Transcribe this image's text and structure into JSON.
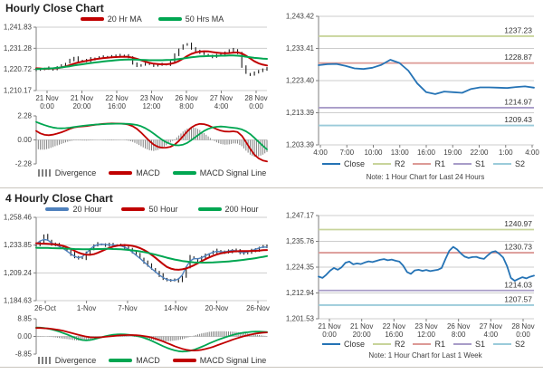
{
  "chart_data": [
    {
      "type": "candlestick",
      "title": "Hourly Close Chart",
      "ylim": [
        1210.17,
        1241.83
      ],
      "ytick_labels": [
        "1,241.83",
        "1,231.28",
        "1,220.72",
        "1,210.17"
      ],
      "ytick_values": [
        1241.83,
        1231.28,
        1220.72,
        1210.17
      ],
      "xlabels": [
        [
          "21 Nov",
          "0:00"
        ],
        [
          "21 Nov",
          "20:00"
        ],
        [
          "22 Nov",
          "16:00"
        ],
        [
          "23 Nov",
          "12:00"
        ],
        [
          "26 Nov",
          "8:00"
        ],
        [
          "27 Nov",
          "4:00"
        ],
        [
          "28 Nov",
          "0:00"
        ]
      ],
      "close": [
        1220.6,
        1220.9,
        1220.7,
        1221.3,
        1221.0,
        1221.8,
        1222.5,
        1223.8,
        1225.6,
        1226.3,
        1225.2,
        1224.6,
        1225.4,
        1226.0,
        1226.4,
        1226.8,
        1227.0,
        1227.3,
        1227.5,
        1227.2,
        1227.6,
        1227.8,
        1226.5,
        1224.0,
        1222.6,
        1222.9,
        1223.4,
        1223.1,
        1222.8,
        1223.2,
        1223.0,
        1223.4,
        1224.5,
        1228.0,
        1231.0,
        1232.8,
        1233.2,
        1231.5,
        1230.0,
        1229.0,
        1228.3,
        1227.6,
        1227.2,
        1227.8,
        1228.4,
        1229.3,
        1230.2,
        1230.6,
        1229.0,
        1222.0,
        1218.8,
        1218.4,
        1219.3,
        1219.8,
        1220.3,
        1221.6
      ],
      "series": [
        {
          "name": "20 Hr MA",
          "color": "#C00000",
          "width": 2,
          "values": [
            1221.3,
            1221.2,
            1221.0,
            1221.1,
            1221.2,
            1221.4,
            1221.7,
            1222.2,
            1222.9,
            1223.6,
            1224.2,
            1224.6,
            1225.0,
            1225.4,
            1225.8,
            1226.1,
            1226.4,
            1226.6,
            1226.8,
            1226.9,
            1227.0,
            1227.1,
            1227.0,
            1226.6,
            1226.0,
            1225.3,
            1224.6,
            1224.0,
            1223.6,
            1223.4,
            1223.3,
            1223.3,
            1223.5,
            1224.0,
            1224.9,
            1226.1,
            1227.4,
            1228.5,
            1229.2,
            1229.6,
            1229.8,
            1229.7,
            1229.4,
            1229.1,
            1228.9,
            1228.8,
            1228.9,
            1229.1,
            1229.2,
            1228.7,
            1227.6,
            1226.2,
            1224.8,
            1223.8,
            1223.1,
            1222.7
          ]
        },
        {
          "name": "50 Hrs MA",
          "color": "#00A651",
          "width": 2,
          "values": [
            1220.9,
            1221.0,
            1221.1,
            1221.2,
            1221.3,
            1221.5,
            1221.7,
            1222.0,
            1222.3,
            1222.7,
            1223.0,
            1223.3,
            1223.6,
            1223.9,
            1224.2,
            1224.4,
            1224.7,
            1224.9,
            1225.1,
            1225.3,
            1225.5,
            1225.6,
            1225.7,
            1225.7,
            1225.6,
            1225.5,
            1225.4,
            1225.3,
            1225.3,
            1225.3,
            1225.3,
            1225.4,
            1225.5,
            1225.7,
            1225.9,
            1226.2,
            1226.5,
            1226.8,
            1227.0,
            1227.2,
            1227.3,
            1227.4,
            1227.5,
            1227.5,
            1227.6,
            1227.6,
            1227.7,
            1227.7,
            1227.6,
            1227.4,
            1227.1,
            1226.8,
            1226.5,
            1226.3,
            1226.1,
            1226.0
          ]
        }
      ],
      "macd": {
        "ylim": [
          -2.28,
          2.28
        ],
        "ytick_labels": [
          "2.28",
          "0.00",
          "-2.28"
        ],
        "divergence_label": "Divergence",
        "divergence_color": "#808080",
        "macd": {
          "name": "MACD",
          "color": "#C00000",
          "values": [
            0.85,
            0.62,
            0.48,
            0.45,
            0.5,
            0.6,
            0.72,
            0.88,
            1.05,
            1.18,
            1.25,
            1.28,
            1.32,
            1.38,
            1.44,
            1.48,
            1.52,
            1.55,
            1.57,
            1.56,
            1.55,
            1.52,
            1.45,
            1.3,
            1.05,
            0.7,
            0.3,
            -0.1,
            -0.45,
            -0.65,
            -0.74,
            -0.73,
            -0.65,
            -0.45,
            -0.1,
            0.35,
            0.8,
            1.18,
            1.42,
            1.52,
            1.5,
            1.38,
            1.2,
            1.02,
            0.88,
            0.8,
            0.78,
            0.82,
            0.75,
            0.4,
            -0.2,
            -0.85,
            -1.4,
            -1.75,
            -1.95,
            -2.05
          ]
        },
        "signal": {
          "name": "MACD Signal Line",
          "color": "#00A651",
          "values": [
            1.7,
            1.55,
            1.4,
            1.28,
            1.18,
            1.12,
            1.1,
            1.12,
            1.16,
            1.22,
            1.28,
            1.33,
            1.38,
            1.42,
            1.45,
            1.48,
            1.5,
            1.52,
            1.53,
            1.54,
            1.54,
            1.53,
            1.52,
            1.48,
            1.42,
            1.3,
            1.12,
            0.88,
            0.6,
            0.3,
            0.02,
            -0.22,
            -0.4,
            -0.5,
            -0.52,
            -0.45,
            -0.28,
            -0.02,
            0.28,
            0.58,
            0.85,
            1.05,
            1.18,
            1.25,
            1.27,
            1.25,
            1.2,
            1.15,
            1.1,
            1.0,
            0.82,
            0.55,
            0.2,
            -0.18,
            -0.55,
            -0.9
          ]
        }
      }
    },
    {
      "type": "line",
      "ylim": [
        1203.39,
        1243.42
      ],
      "ytick_labels": [
        "1,243.42",
        "1,233.41",
        "1,223.40",
        "1,213.39",
        "1,203.39"
      ],
      "ytick_values": [
        1243.42,
        1233.41,
        1223.4,
        1213.39,
        1203.39
      ],
      "xlabels": [
        "4:00",
        "7:00",
        "10:00",
        "13:00",
        "16:00",
        "19:00",
        "22:00",
        "1:00",
        "4:00"
      ],
      "close": {
        "name": "Close",
        "color": "#2573B5",
        "values": [
          1228.2,
          1228.5,
          1228.6,
          1228.0,
          1227.2,
          1227.0,
          1227.4,
          1228.3,
          1229.9,
          1228.9,
          1226.5,
          1222.5,
          1219.8,
          1219.2,
          1220.0,
          1219.8,
          1219.6,
          1220.8,
          1221.3,
          1221.3,
          1221.2,
          1221.1,
          1221.4,
          1221.6,
          1221.2
        ]
      },
      "pivots": [
        {
          "name": "R2",
          "label": "1237.23",
          "value": 1237.23,
          "color": "#C8D49B"
        },
        {
          "name": "R1",
          "label": "1228.87",
          "value": 1228.87,
          "color": "#DC9A96"
        },
        {
          "name": "S1",
          "label": "1214.97",
          "value": 1214.97,
          "color": "#A89CC8"
        },
        {
          "name": "S2",
          "label": "1209.43",
          "value": 1209.43,
          "color": "#9BCBDA"
        }
      ],
      "note": "Note: 1 Hour Chart for Last 24 Hours"
    },
    {
      "type": "candlestick",
      "title": "4 Hourly Close Chart",
      "ylim": [
        1184.63,
        1258.46
      ],
      "ytick_labels": [
        "1,258.46",
        "1,233.85",
        "1,209.24",
        "1,184.63"
      ],
      "ytick_values": [
        1258.46,
        1233.85,
        1209.24,
        1184.63
      ],
      "xlabels": [
        {
          "label": "26-Oct",
          "pos": 0
        },
        {
          "label": "1-Nov",
          "pos": 0.194
        },
        {
          "label": "7-Nov",
          "pos": 0.387
        },
        {
          "label": "14-Nov",
          "pos": 0.613
        },
        {
          "label": "20-Nov",
          "pos": 0.806
        },
        {
          "label": "26-Nov",
          "pos": 1
        }
      ],
      "close": [
        1234.0,
        1236.5,
        1242.0,
        1238.0,
        1235.0,
        1234.2,
        1233.0,
        1231.0,
        1228.5,
        1226.0,
        1223.5,
        1222.0,
        1222.5,
        1226.5,
        1230.5,
        1233.5,
        1235.0,
        1234.2,
        1234.6,
        1234.0,
        1233.6,
        1234.0,
        1233.2,
        1232.4,
        1230.5,
        1227.5,
        1225.0,
        1222.0,
        1219.0,
        1216.0,
        1213.0,
        1210.0,
        1207.5,
        1204.5,
        1203.0,
        1202.2,
        1203.0,
        1202.5,
        1206.0,
        1214.0,
        1223.5,
        1221.5,
        1220.8,
        1222.8,
        1224.5,
        1226.0,
        1227.8,
        1229.0,
        1228.0,
        1227.0,
        1228.5,
        1230.0,
        1229.0,
        1227.0,
        1226.2,
        1228.0,
        1229.5,
        1229.0,
        1232.0,
        1233.0,
        1231.5
      ],
      "series": [
        {
          "name": "20 Hour",
          "color": "#4F81BD",
          "width": 1.4,
          "derive": "smooth_close"
        },
        {
          "name": "50 Hour",
          "color": "#C00000",
          "width": 2,
          "values": [
            1235.5,
            1235.3,
            1235.2,
            1235.0,
            1234.8,
            1234.5,
            1234.0,
            1233.2,
            1232.0,
            1230.5,
            1228.8,
            1227.2,
            1226.0,
            1225.3,
            1225.2,
            1225.8,
            1227.0,
            1228.5,
            1230.0,
            1231.4,
            1232.5,
            1233.3,
            1233.8,
            1233.9,
            1233.7,
            1233.2,
            1232.4,
            1231.2,
            1229.6,
            1227.6,
            1225.2,
            1222.6,
            1219.8,
            1217.0,
            1214.5,
            1213.0,
            1212.2,
            1212.0,
            1212.4,
            1213.2,
            1214.5,
            1216.0,
            1217.8,
            1219.6,
            1221.4,
            1223.0,
            1224.4,
            1225.6,
            1226.5,
            1227.2,
            1227.7,
            1228.1,
            1228.4,
            1228.5,
            1228.6,
            1228.6,
            1228.7,
            1228.8,
            1229.0,
            1229.3,
            1229.5
          ]
        },
        {
          "name": "200 Hour",
          "color": "#00A651",
          "width": 2,
          "values": [
            1231.5,
            1231.4,
            1231.4,
            1231.3,
            1231.2,
            1231.1,
            1231.0,
            1230.9,
            1230.7,
            1230.6,
            1230.4,
            1230.3,
            1230.2,
            1230.2,
            1230.2,
            1230.3,
            1230.4,
            1230.4,
            1230.5,
            1230.5,
            1230.4,
            1230.3,
            1230.1,
            1229.9,
            1229.6,
            1229.2,
            1228.8,
            1228.3,
            1227.7,
            1227.0,
            1226.2,
            1225.4,
            1224.5,
            1223.6,
            1222.7,
            1221.9,
            1221.1,
            1220.4,
            1219.8,
            1219.3,
            1218.9,
            1218.6,
            1218.4,
            1218.3,
            1218.3,
            1218.4,
            1218.5,
            1218.7,
            1218.9,
            1219.1,
            1219.4,
            1219.7,
            1220.0,
            1220.4,
            1220.8,
            1221.3,
            1221.8,
            1222.3,
            1222.9,
            1223.5,
            1224.1
          ]
        }
      ],
      "macd": {
        "ylim": [
          -8.85,
          8.85
        ],
        "ytick_labels": [
          "8.85",
          "0.00",
          "-8.85"
        ],
        "divergence_label": "Divergence",
        "divergence_color": "#808080",
        "macd": {
          "name": "MACD",
          "color": "#00A651",
          "values": [
            4.5,
            4.4,
            4.2,
            3.9,
            3.5,
            3.0,
            2.4,
            1.7,
            1.0,
            0.2,
            -0.6,
            -1.3,
            -1.8,
            -2.0,
            -1.8,
            -1.4,
            -0.9,
            -0.4,
            0.1,
            0.5,
            0.8,
            1.0,
            1.05,
            1.0,
            0.85,
            0.6,
            0.3,
            -0.1,
            -0.7,
            -1.4,
            -2.2,
            -3.1,
            -4.0,
            -4.9,
            -5.7,
            -6.4,
            -7.0,
            -7.4,
            -7.6,
            -7.5,
            -7.2,
            -6.7,
            -6.0,
            -5.2,
            -4.4,
            -3.5,
            -2.7,
            -1.9,
            -1.2,
            -0.5,
            0.1,
            0.7,
            1.2,
            1.6,
            1.9,
            2.1,
            2.3,
            2.4,
            2.4,
            2.3,
            2.2
          ]
        },
        "signal": {
          "name": "MACD Signal Line",
          "color": "#C00000",
          "values": [
            4.2,
            4.2,
            4.1,
            4.0,
            3.8,
            3.5,
            3.2,
            2.8,
            2.3,
            1.8,
            1.3,
            0.8,
            0.3,
            -0.1,
            -0.4,
            -0.5,
            -0.5,
            -0.4,
            -0.2,
            0.0,
            0.2,
            0.4,
            0.55,
            0.65,
            0.7,
            0.68,
            0.6,
            0.45,
            0.2,
            -0.15,
            -0.6,
            -1.15,
            -1.8,
            -2.5,
            -3.3,
            -4.1,
            -4.9,
            -5.6,
            -6.2,
            -6.7,
            -7.0,
            -7.1,
            -7.0,
            -6.7,
            -6.3,
            -5.8,
            -5.2,
            -4.5,
            -3.8,
            -3.1,
            -2.4,
            -1.7,
            -1.05,
            -0.45,
            0.1,
            0.6,
            1.05,
            1.4,
            1.7,
            1.9,
            2.0
          ]
        }
      }
    },
    {
      "type": "line",
      "ylim": [
        1201.53,
        1247.17
      ],
      "ytick_labels": [
        "1,247.17",
        "1,235.76",
        "1,224.35",
        "1,212.94",
        "1,201.53"
      ],
      "ytick_values": [
        1247.17,
        1235.76,
        1224.35,
        1212.94,
        1201.53
      ],
      "xlabels": [
        [
          "21 Nov",
          "0:00"
        ],
        [
          "21 Nov",
          "20:00"
        ],
        [
          "22 Nov",
          "16:00"
        ],
        [
          "23 Nov",
          "12:00"
        ],
        [
          "26 Nov",
          "8:00"
        ],
        [
          "27 Nov",
          "4:00"
        ],
        [
          "28 Nov",
          "0:00"
        ]
      ],
      "close": {
        "name": "Close",
        "color": "#2573B5",
        "values": [
          1220.2,
          1219.6,
          1221.0,
          1222.8,
          1224.0,
          1223.2,
          1224.3,
          1226.3,
          1226.8,
          1225.6,
          1226.0,
          1225.7,
          1226.4,
          1226.9,
          1226.6,
          1227.1,
          1227.6,
          1227.9,
          1227.4,
          1227.7,
          1227.2,
          1226.8,
          1225.0,
          1222.2,
          1221.4,
          1222.9,
          1223.2,
          1222.7,
          1223.1,
          1222.6,
          1222.9,
          1223.2,
          1224.0,
          1228.0,
          1231.6,
          1233.3,
          1232.2,
          1230.4,
          1229.0,
          1228.4,
          1228.8,
          1228.9,
          1228.3,
          1228.0,
          1229.6,
          1231.0,
          1231.4,
          1230.2,
          1228.6,
          1224.8,
          1219.6,
          1218.3,
          1219.2,
          1219.9,
          1219.4,
          1220.1,
          1220.6
        ]
      },
      "pivots": [
        {
          "name": "R2",
          "label": "1240.97",
          "value": 1240.97,
          "color": "#C8D49B"
        },
        {
          "name": "R1",
          "label": "1230.73",
          "value": 1230.73,
          "color": "#DC9A96"
        },
        {
          "name": "S1",
          "label": "1214.03",
          "value": 1214.03,
          "color": "#A89CC8"
        },
        {
          "name": "S2",
          "label": "1207.57",
          "value": 1207.57,
          "color": "#9BCBDA"
        }
      ],
      "note": "Note: 1 Hour Chart for Last 1 Week"
    }
  ]
}
